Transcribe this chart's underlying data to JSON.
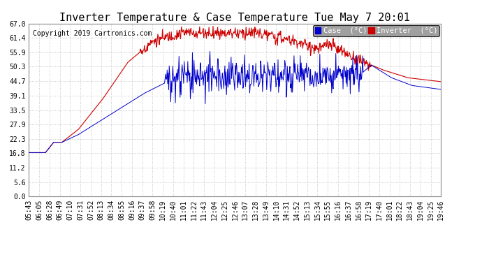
{
  "title": "Inverter Temperature & Case Temperature Tue May 7 20:01",
  "copyright": "Copyright 2019 Cartronics.com",
  "legend_case_label": "Case  (°C)",
  "legend_inverter_label": "Inverter  (°C)",
  "legend_case_color": "#0000cc",
  "legend_inverter_color": "#cc0000",
  "yticks": [
    0.0,
    5.6,
    11.2,
    16.8,
    22.3,
    27.9,
    33.5,
    39.1,
    44.7,
    50.3,
    55.9,
    61.4,
    67.0
  ],
  "ymin": 0.0,
  "ymax": 67.0,
  "background_color": "#ffffff",
  "plot_bg_color": "#ffffff",
  "grid_color": "#bbbbbb",
  "case_color": "#0000cc",
  "inverter_color": "#cc0000",
  "title_fontsize": 11,
  "copyright_fontsize": 7,
  "tick_fontsize": 7,
  "n_points": 800,
  "xtick_labels": [
    "05:43",
    "06:05",
    "06:28",
    "06:49",
    "07:10",
    "07:31",
    "07:52",
    "08:13",
    "08:34",
    "08:55",
    "09:16",
    "09:37",
    "09:58",
    "10:19",
    "10:40",
    "11:01",
    "11:22",
    "11:43",
    "12:04",
    "12:25",
    "12:46",
    "13:07",
    "13:28",
    "13:49",
    "14:10",
    "14:31",
    "14:52",
    "15:13",
    "15:34",
    "15:55",
    "16:16",
    "16:37",
    "16:58",
    "17:19",
    "17:40",
    "18:01",
    "18:22",
    "18:43",
    "19:04",
    "19:25",
    "19:46"
  ]
}
